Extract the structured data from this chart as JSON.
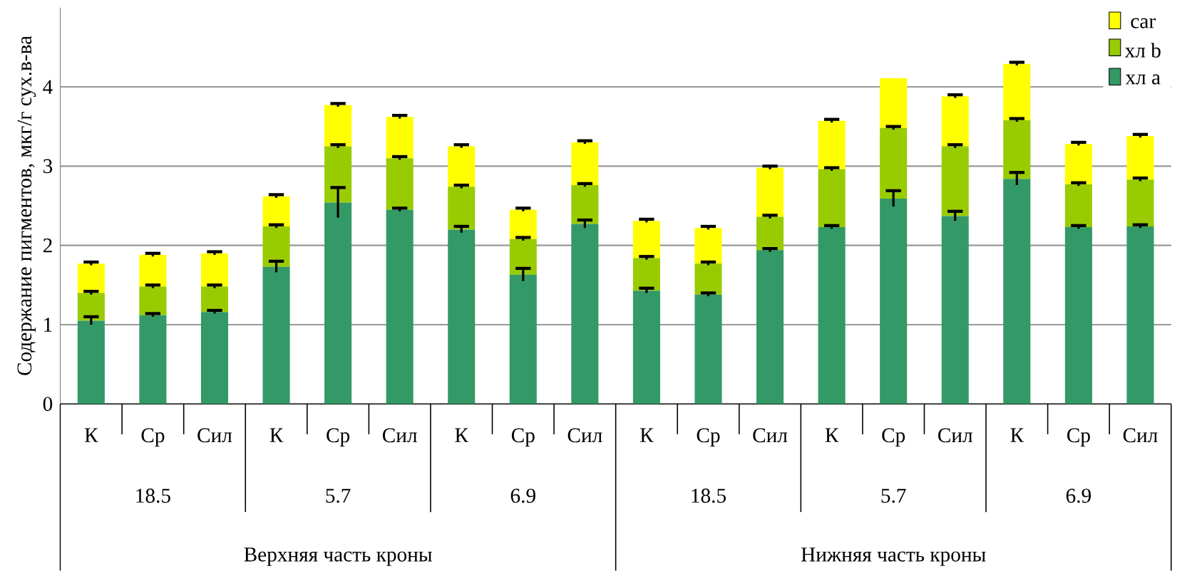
{
  "chart_data": {
    "type": "bar",
    "stacked": true,
    "ylabel": "Содержание пигментов, мкг/г сух.в-ва",
    "categories": [
      "К",
      "Ср",
      "Сил",
      "К",
      "Ср",
      "Сил",
      "К",
      "Ср",
      "Сил",
      "К",
      "Ср",
      "Сил",
      "К",
      "Ср",
      "Сил",
      "К",
      "Ср",
      "Сил"
    ],
    "annotations": [
      "18.5",
      "5.7",
      "6.9",
      "18.5",
      "5.7",
      "6.9",
      "Верхняя часть кроны",
      "Нижняя часть кроны"
    ],
    "series": [
      {
        "name": "хл a",
        "color": "#339966",
        "values": [
          1.05,
          1.12,
          1.16,
          1.73,
          2.54,
          2.45,
          2.2,
          1.63,
          2.27,
          1.43,
          1.38,
          1.94,
          2.23,
          2.59,
          2.37,
          2.84,
          2.23,
          2.24
        ],
        "errors": [
          0.05,
          0.02,
          0.02,
          0.07,
          0.19,
          0.02,
          0.04,
          0.08,
          0.05,
          0.03,
          0.02,
          0.02,
          0.02,
          0.1,
          0.06,
          0.08,
          0.02,
          0.02
        ]
      },
      {
        "name": "хл b",
        "color": "#99cc00",
        "values": [
          0.35,
          0.36,
          0.32,
          0.51,
          0.71,
          0.65,
          0.54,
          0.45,
          0.49,
          0.41,
          0.39,
          0.42,
          0.73,
          0.89,
          0.88,
          0.74,
          0.54,
          0.59
        ],
        "errors": [
          0.02,
          0.02,
          0.02,
          0.02,
          0.02,
          0.02,
          0.02,
          0.02,
          0.02,
          0.02,
          0.02,
          0.02,
          0.02,
          0.02,
          0.02,
          0.02,
          0.02,
          0.02
        ]
      },
      {
        "name": "car",
        "color": "#ffff00",
        "values": [
          0.37,
          0.4,
          0.42,
          0.38,
          0.52,
          0.52,
          0.51,
          0.37,
          0.54,
          0.47,
          0.45,
          0.62,
          0.61,
          0.63,
          0.63,
          0.71,
          0.51,
          0.55
        ],
        "errors": [
          0.02,
          0.02,
          0.02,
          0.02,
          0.02,
          0.02,
          0.02,
          0.02,
          0.02,
          0.02,
          0.02,
          0.02,
          0.02,
          null,
          0.02,
          0.02,
          0.02,
          0.02
        ]
      }
    ],
    "ylim": [
      0,
      5
    ],
    "yticks": [
      0,
      1,
      2,
      3,
      4
    ],
    "grid": "y",
    "legend": "top right"
  }
}
